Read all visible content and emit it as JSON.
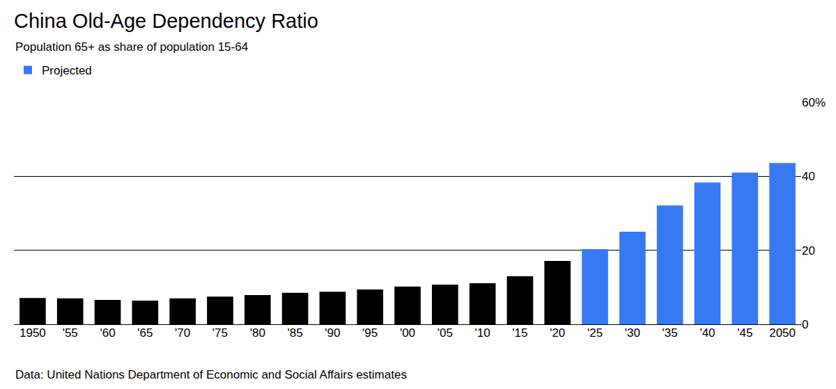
{
  "chart_data": {
    "type": "bar",
    "title": "China Old-Age Dependency Ratio",
    "subtitle": "Population 65+ as share of population 15-64",
    "annotations": [
      {
        "text": "Data: United Nations Department of Economic and Social Affairs estimates"
      }
    ],
    "categories": [
      "1950",
      "'55",
      "'60",
      "'65",
      "'70",
      "'75",
      "'80",
      "'85",
      "'90",
      "'95",
      "'00",
      "'05",
      "'10",
      "'15",
      "'20",
      "'25",
      "'30",
      "'35",
      "'40",
      "'45",
      "2050"
    ],
    "series": [
      {
        "color": "#000000",
        "values": [
          7.1,
          7.0,
          6.6,
          6.4,
          7.0,
          7.5,
          7.9,
          8.5,
          8.8,
          9.4,
          10.2,
          10.7,
          11.1,
          13.0,
          17.1,
          null,
          null,
          null,
          null,
          null,
          null
        ]
      },
      {
        "name": "Projected",
        "color": "#3679f3",
        "values": [
          null,
          null,
          null,
          null,
          null,
          null,
          null,
          null,
          null,
          null,
          null,
          null,
          null,
          null,
          null,
          20.3,
          25.0,
          32.1,
          38.3,
          41.0,
          43.6
        ]
      }
    ],
    "ylim": [
      0,
      60
    ],
    "yticks": [
      0,
      20,
      40,
      {
        "value": 60,
        "label": "60%"
      }
    ],
    "grid": true,
    "legend": "top left"
  }
}
